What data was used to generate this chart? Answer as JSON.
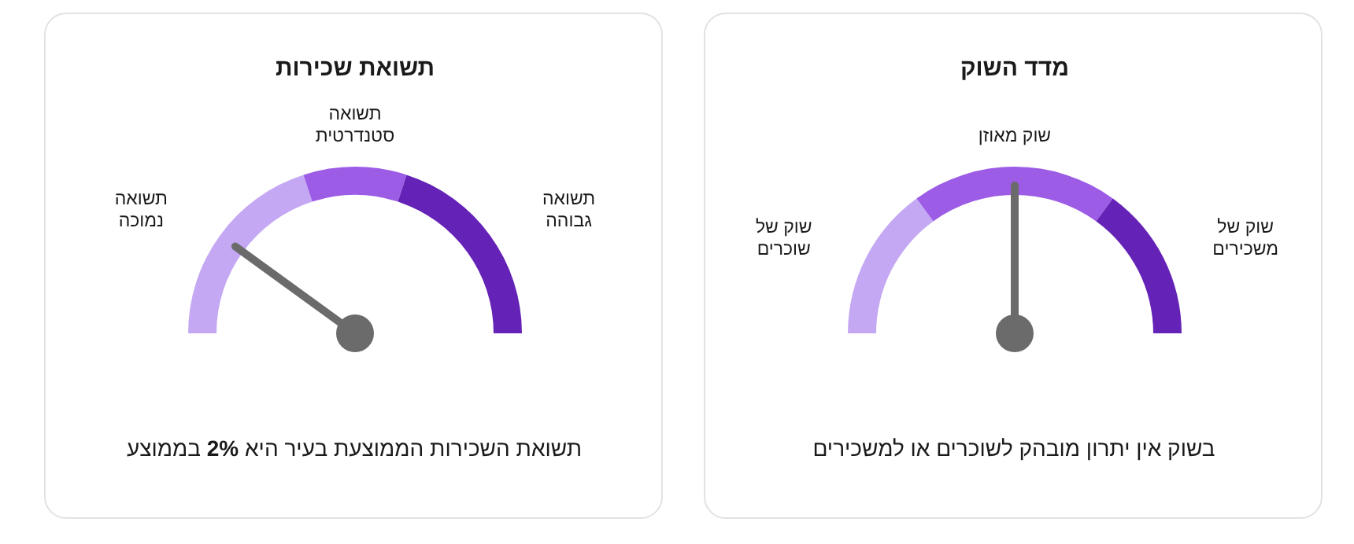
{
  "chart_data": [
    {
      "type": "donut",
      "title": "תשואת שכירות",
      "categories": [
        "תשואה נמוכה",
        "תשואה סטנדרטית",
        "תשואה גבוהה"
      ],
      "values": [
        40,
        20,
        40
      ],
      "colors": [
        "#c4a8f3",
        "#9c5ce6",
        "#6422b6"
      ],
      "needle": "תשואה נמוכה",
      "annotations": [
        "תשואת השכירות הממוצעת בעיר היא **2%** בממוצע"
      ]
    },
    {
      "type": "donut",
      "title": "מדד השוק",
      "categories": [
        "שוק של שוכרים",
        "שוק מאוזן",
        "שוק של משכירים"
      ],
      "values": [
        30,
        40,
        30
      ],
      "colors": [
        "#c4a8f3",
        "#9c5ce6",
        "#6422b6"
      ],
      "needle": "שוק מאוזן",
      "annotations": [
        "בשוק אין יתרון מובהק לשוכרים או למשכירים"
      ]
    }
  ]
}
